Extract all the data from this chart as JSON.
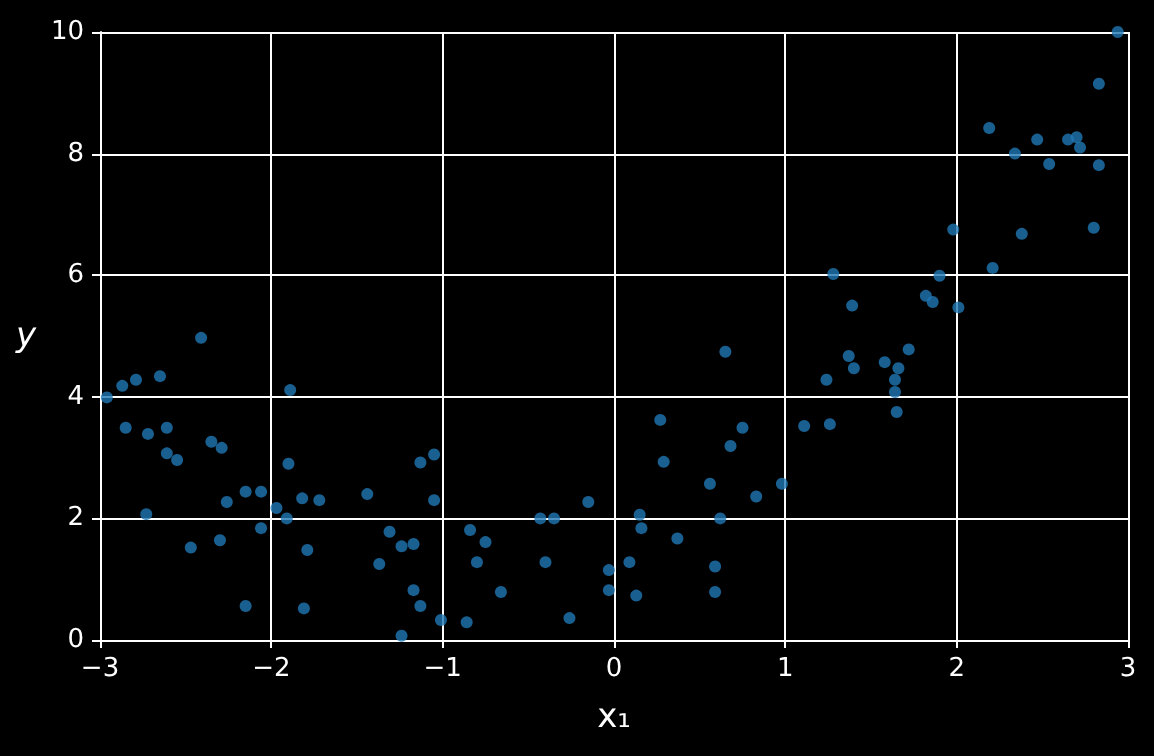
{
  "chart_data": {
    "type": "scatter",
    "xlabel": "x₁",
    "ylabel": "y",
    "xlim": [
      -3,
      3
    ],
    "ylim": [
      0,
      10
    ],
    "xticks": [
      {
        "value": -3,
        "label": "−3"
      },
      {
        "value": -2,
        "label": "−2"
      },
      {
        "value": -1,
        "label": "−1"
      },
      0,
      1,
      2,
      3
    ],
    "yticks": [
      0,
      2,
      4,
      6,
      8,
      10
    ],
    "grid": true,
    "marker": "circle",
    "series": [
      {
        "color": "#1f77b4",
        "x": [
          -2.96,
          -2.87,
          -2.79,
          -2.65,
          -2.41,
          -2.85,
          -2.72,
          -2.61,
          -2.73,
          -2.61,
          -2.55,
          -2.47,
          -2.35,
          -2.29,
          -2.26,
          -2.3,
          -2.15,
          -2.06,
          -2.06,
          -2.15,
          -1.97,
          -1.91,
          -1.9,
          -1.89,
          -1.82,
          -1.72,
          -1.79,
          -1.81,
          -1.44,
          -1.37,
          -1.31,
          -1.24,
          -1.17,
          -1.13,
          -1.05,
          -1.05,
          -1.17,
          -1.13,
          -1.24,
          -1.01,
          -0.86,
          -0.84,
          -0.8,
          -0.75,
          -0.66,
          -0.43,
          -0.35,
          -0.4,
          -0.26,
          -0.15,
          -0.03,
          -0.03,
          0.09,
          0.13,
          0.15,
          0.16,
          0.27,
          0.29,
          0.37,
          0.56,
          0.59,
          0.59,
          0.62,
          0.65,
          0.68,
          0.75,
          0.83,
          0.98,
          1.11,
          1.24,
          1.26,
          1.28,
          1.37,
          1.39,
          1.4,
          1.58,
          1.64,
          1.64,
          1.66,
          1.65,
          1.72,
          1.82,
          1.86,
          1.9,
          1.98,
          2.01,
          2.19,
          2.21,
          2.34,
          2.38,
          2.47,
          2.54,
          2.65,
          2.7,
          2.72,
          2.8,
          2.83,
          2.83,
          2.94
        ],
        "values": [
          3.99,
          4.18,
          4.28,
          4.34,
          4.97,
          3.49,
          3.39,
          3.49,
          2.07,
          3.07,
          2.96,
          1.52,
          3.26,
          3.16,
          2.27,
          1.64,
          2.44,
          2.44,
          1.84,
          0.56,
          2.17,
          2.0,
          2.9,
          4.11,
          2.33,
          2.3,
          1.48,
          0.52,
          2.4,
          1.25,
          1.78,
          1.54,
          1.58,
          2.92,
          3.05,
          2.3,
          0.82,
          0.56,
          0.07,
          0.33,
          0.29,
          1.81,
          1.28,
          1.61,
          0.79,
          2.0,
          2.0,
          1.28,
          0.36,
          2.27,
          1.15,
          0.82,
          1.28,
          0.73,
          2.06,
          1.84,
          3.62,
          2.93,
          1.67,
          2.57,
          1.21,
          0.79,
          2.0,
          4.74,
          3.19,
          3.49,
          2.36,
          2.57,
          3.52,
          4.28,
          3.55,
          6.02,
          4.67,
          5.5,
          4.47,
          4.57,
          4.28,
          4.08,
          4.47,
          3.75,
          4.78,
          5.66,
          5.56,
          5.99,
          6.75,
          5.47,
          8.42,
          6.12,
          8.0,
          6.68,
          8.23,
          7.83,
          8.23,
          8.27,
          8.1,
          6.78,
          7.81,
          9.15,
          10.0
        ]
      }
    ]
  }
}
